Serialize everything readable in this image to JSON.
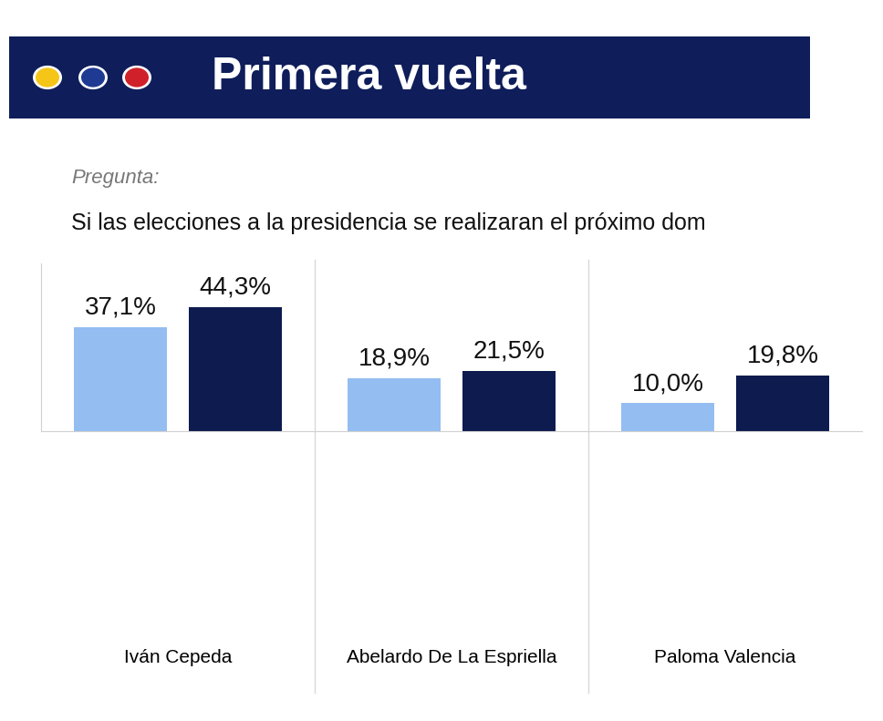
{
  "chart_data": {
    "type": "bar",
    "title": "Primera vuelta",
    "subtitle": "Pregunta:",
    "annotations": [
      "Si las elecciones a la presidencia se realizaran el próximo dom"
    ],
    "categories": [
      "Iván Cepeda",
      "Abelardo De La Espriella",
      "Paloma Valencia"
    ],
    "series": [
      {
        "color": "#94bdf2",
        "values": [
          37.1,
          18.9,
          10.0
        ],
        "value_labels": [
          "37,1%",
          "18,9%",
          "10,0%"
        ]
      },
      {
        "color": "#0d1b4f",
        "values": [
          44.3,
          21.5,
          19.8
        ],
        "value_labels": [
          "44,3%",
          "21,5%",
          "19,8%"
        ]
      }
    ],
    "ylim": [
      0,
      60
    ],
    "yticks": [],
    "grid": false,
    "data_labels": true,
    "tick_labels": "x"
  }
}
